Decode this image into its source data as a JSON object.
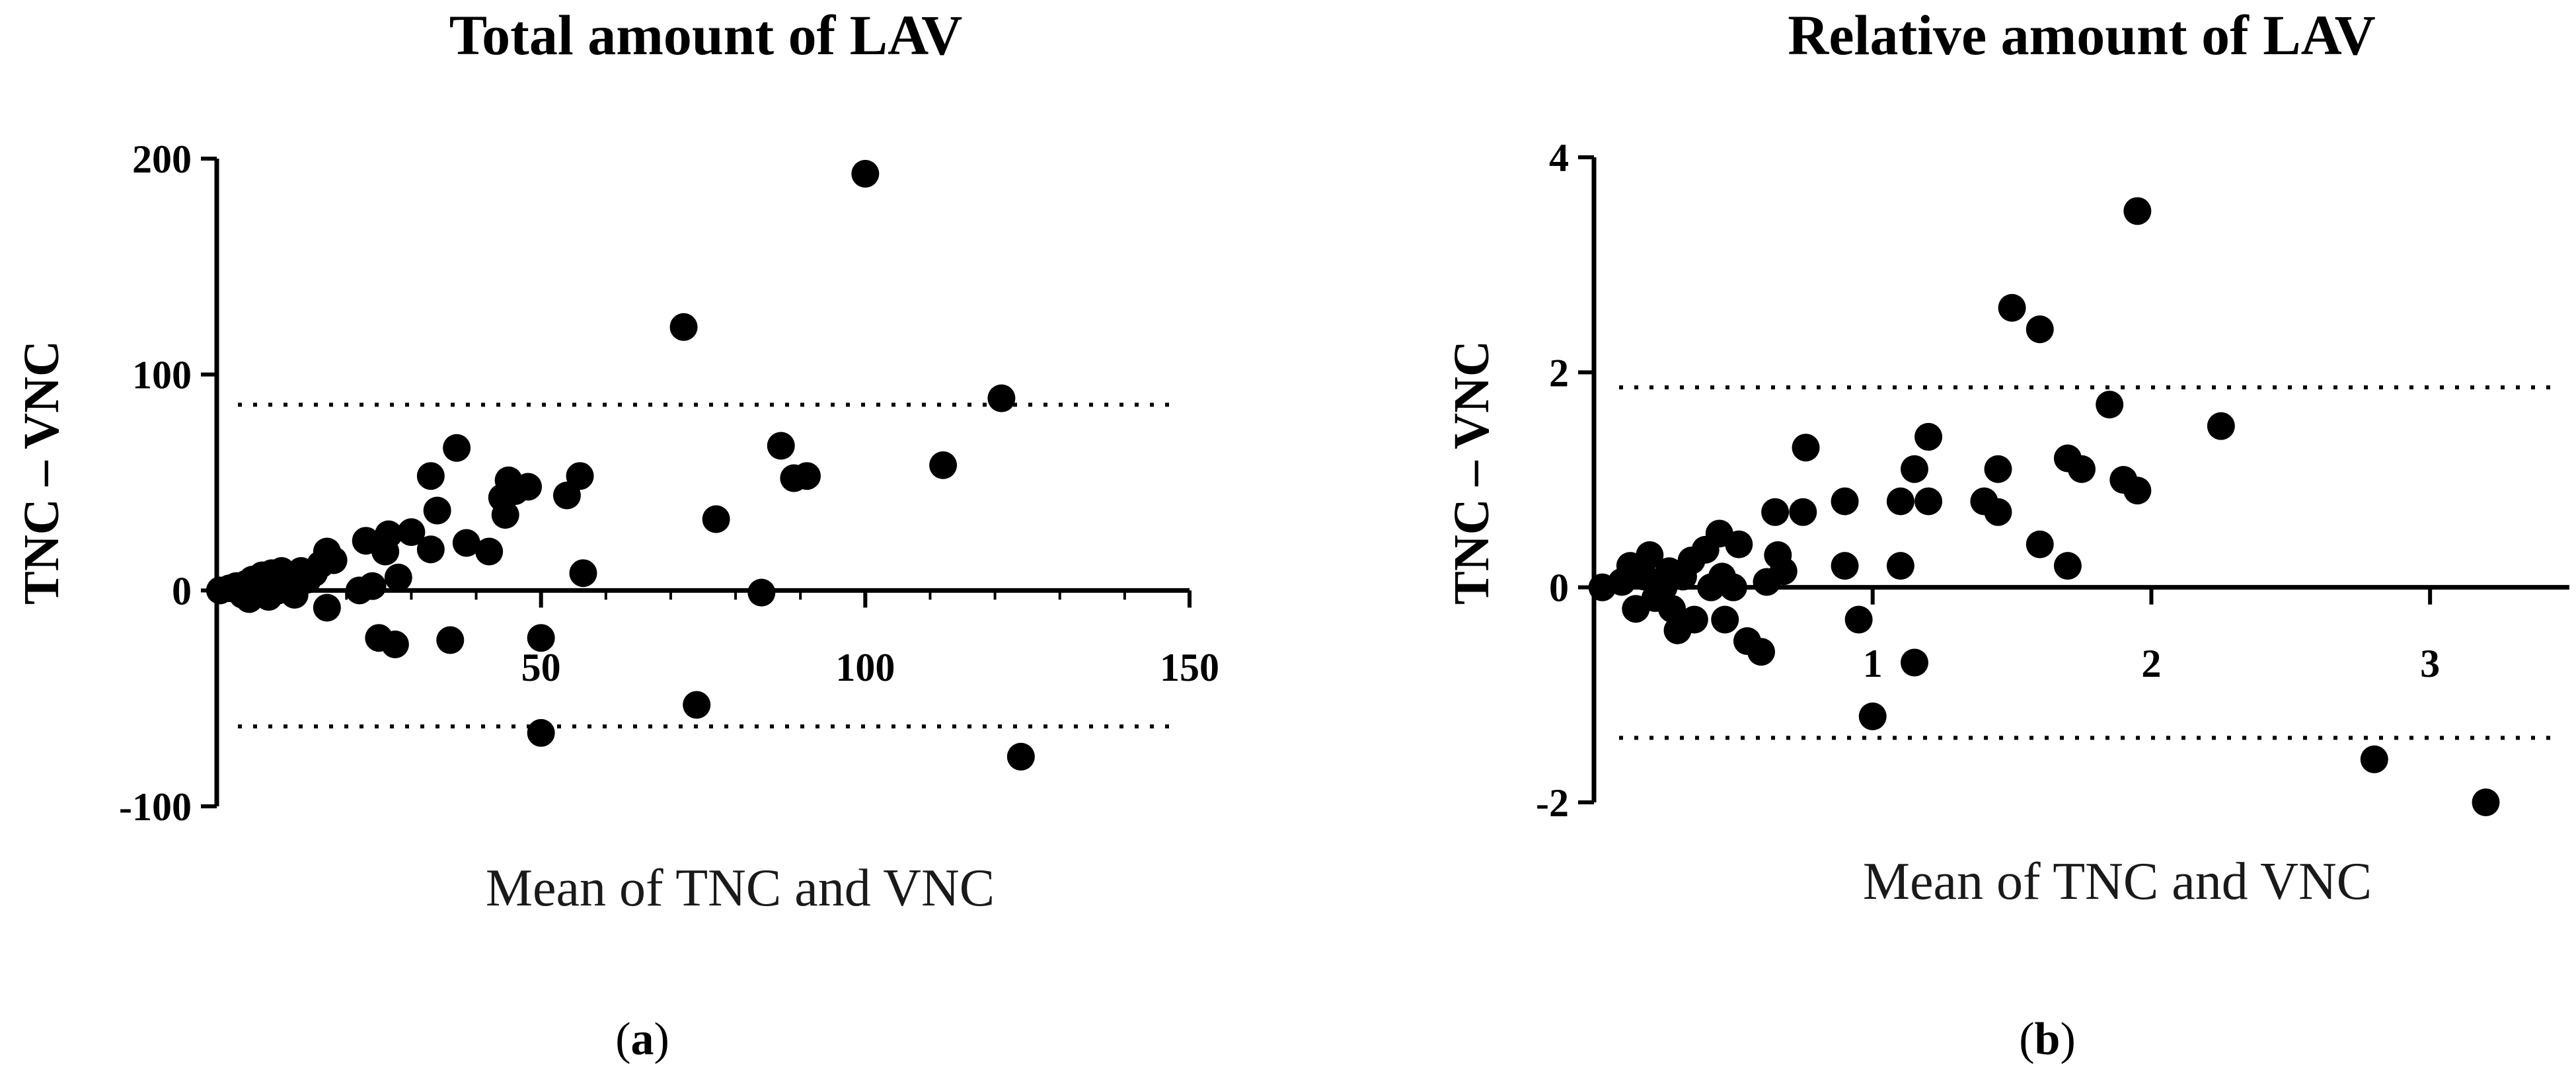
{
  "chart_data": [
    {
      "type": "scatter",
      "title": "Total amount of LAV",
      "xlabel": "Mean of TNC and VNC",
      "ylabel": "TNC – VNC",
      "panel_label": "a",
      "xlim": [
        0,
        150
      ],
      "ylim": [
        -100,
        200
      ],
      "x_ticks": [
        50,
        100,
        150
      ],
      "y_ticks": [
        -100,
        0,
        100,
        200
      ],
      "x_tick_labels": [
        "50",
        "100",
        "150"
      ],
      "y_tick_labels": [
        "-100",
        "0",
        "100",
        "200"
      ],
      "limits_of_agreement": [
        86,
        -63
      ],
      "grid": false,
      "points": [
        [
          0.5,
          0
        ],
        [
          2,
          1
        ],
        [
          3,
          2
        ],
        [
          4,
          -2
        ],
        [
          4.5,
          3
        ],
        [
          5,
          -4
        ],
        [
          5.5,
          5
        ],
        [
          6,
          1
        ],
        [
          6.5,
          -1
        ],
        [
          7,
          7
        ],
        [
          7.5,
          3
        ],
        [
          8,
          -3
        ],
        [
          8.5,
          8
        ],
        [
          9,
          4
        ],
        [
          9.5,
          0
        ],
        [
          10,
          9
        ],
        [
          11,
          6
        ],
        [
          12,
          -2
        ],
        [
          12.5,
          3
        ],
        [
          13,
          9
        ],
        [
          14,
          5
        ],
        [
          15,
          8
        ],
        [
          16,
          12
        ],
        [
          17,
          18
        ],
        [
          17,
          -8
        ],
        [
          18,
          14
        ],
        [
          22,
          0
        ],
        [
          23,
          23
        ],
        [
          24,
          2
        ],
        [
          25,
          -22
        ],
        [
          26,
          18
        ],
        [
          26.5,
          26
        ],
        [
          27.5,
          -25
        ],
        [
          28,
          6
        ],
        [
          30,
          27
        ],
        [
          33,
          19
        ],
        [
          33,
          53
        ],
        [
          34,
          37
        ],
        [
          36,
          -23
        ],
        [
          37,
          66
        ],
        [
          38.5,
          22
        ],
        [
          42,
          18
        ],
        [
          44,
          43
        ],
        [
          44.5,
          35
        ],
        [
          45,
          51
        ],
        [
          46,
          46
        ],
        [
          48,
          48
        ],
        [
          50,
          -66
        ],
        [
          50,
          -22
        ],
        [
          54,
          44
        ],
        [
          56,
          53
        ],
        [
          56.5,
          8
        ],
        [
          72,
          122
        ],
        [
          74,
          -53
        ],
        [
          77,
          33
        ],
        [
          84,
          -1
        ],
        [
          87,
          67
        ],
        [
          89,
          52
        ],
        [
          91,
          53
        ],
        [
          100,
          193
        ],
        [
          112,
          58
        ],
        [
          121,
          89
        ],
        [
          124,
          -77
        ]
      ]
    },
    {
      "type": "scatter",
      "title": "Relative amount of LAV",
      "xlabel": "Mean of TNC and VNC",
      "ylabel": "TNC – VNC",
      "panel_label": "b",
      "xlim": [
        0,
        3.5
      ],
      "ylim": [
        -2,
        4
      ],
      "x_ticks": [
        1,
        2,
        3
      ],
      "y_ticks": [
        -2,
        0,
        2,
        4
      ],
      "x_tick_labels": [
        "1",
        "2",
        "3"
      ],
      "y_tick_labels": [
        "-2",
        "0",
        "2",
        "4"
      ],
      "limits_of_agreement": [
        1.86,
        -1.4
      ],
      "grid": false,
      "points": [
        [
          0.03,
          0
        ],
        [
          0.1,
          0.05
        ],
        [
          0.13,
          0.2
        ],
        [
          0.15,
          -0.2
        ],
        [
          0.18,
          0.1
        ],
        [
          0.2,
          0.3
        ],
        [
          0.22,
          -0.1
        ],
        [
          0.25,
          0
        ],
        [
          0.27,
          0.15
        ],
        [
          0.28,
          -0.2
        ],
        [
          0.3,
          -0.4
        ],
        [
          0.32,
          0.1
        ],
        [
          0.35,
          0.25
        ],
        [
          0.36,
          -0.3
        ],
        [
          0.4,
          0.35
        ],
        [
          0.42,
          0
        ],
        [
          0.45,
          0.5
        ],
        [
          0.46,
          0.1
        ],
        [
          0.47,
          -0.3
        ],
        [
          0.5,
          0
        ],
        [
          0.52,
          0.4
        ],
        [
          0.55,
          -0.5
        ],
        [
          0.6,
          -0.6
        ],
        [
          0.62,
          0.05
        ],
        [
          0.65,
          0.7
        ],
        [
          0.66,
          0.3
        ],
        [
          0.68,
          0.15
        ],
        [
          0.75,
          0.7
        ],
        [
          0.76,
          1.3
        ],
        [
          0.9,
          0.2
        ],
        [
          0.9,
          0.8
        ],
        [
          0.95,
          -0.3
        ],
        [
          1,
          -1.2
        ],
        [
          1.1,
          0.8
        ],
        [
          1.1,
          0.2
        ],
        [
          1.15,
          -0.7
        ],
        [
          1.15,
          1.1
        ],
        [
          1.2,
          0.8
        ],
        [
          1.2,
          1.4
        ],
        [
          1.4,
          0.8
        ],
        [
          1.45,
          1.1
        ],
        [
          1.45,
          0.7
        ],
        [
          1.5,
          2.6
        ],
        [
          1.6,
          2.4
        ],
        [
          1.6,
          0.4
        ],
        [
          1.7,
          1.2
        ],
        [
          1.7,
          0.2
        ],
        [
          1.75,
          1.1
        ],
        [
          1.85,
          1.7
        ],
        [
          1.9,
          1.0
        ],
        [
          1.95,
          0.9
        ],
        [
          1.95,
          3.5
        ],
        [
          2.25,
          1.5
        ],
        [
          2.8,
          -1.6
        ],
        [
          3.2,
          -2.0
        ]
      ]
    }
  ]
}
